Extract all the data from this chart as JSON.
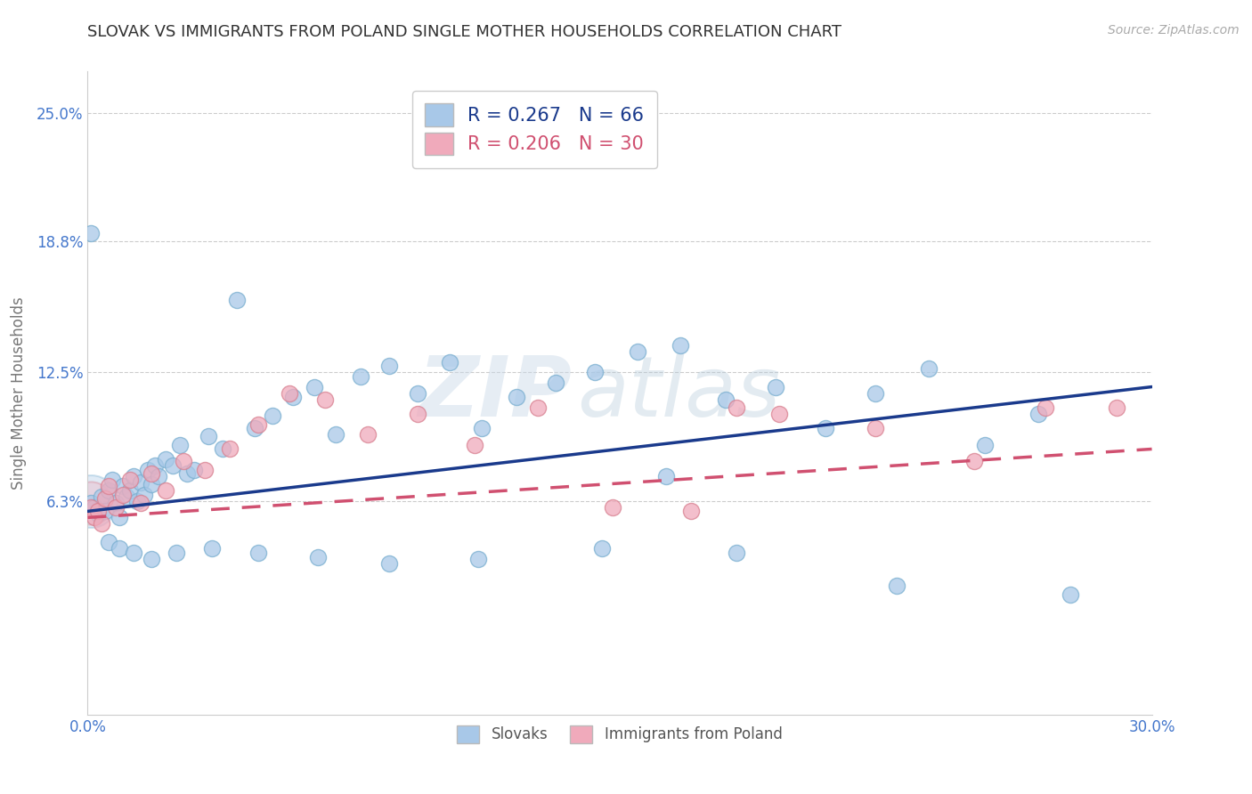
{
  "title": "SLOVAK VS IMMIGRANTS FROM POLAND SINGLE MOTHER HOUSEHOLDS CORRELATION CHART",
  "source": "Source: ZipAtlas.com",
  "ylabel": "Single Mother Households",
  "xmin": 0.0,
  "xmax": 0.3,
  "ymin": -0.04,
  "ymax": 0.27,
  "yticks": [
    0.063,
    0.125,
    0.188,
    0.25
  ],
  "ytick_labels": [
    "6.3%",
    "12.5%",
    "18.8%",
    "25.0%"
  ],
  "xticks": [
    0.0,
    0.05,
    0.1,
    0.15,
    0.2,
    0.25,
    0.3
  ],
  "xtick_labels": [
    "0.0%",
    "",
    "",
    "",
    "",
    "",
    "30.0%"
  ],
  "legend_bottom_labels": [
    "Slovaks",
    "Immigrants from Poland"
  ],
  "R_slovak": 0.267,
  "N_slovak": 66,
  "R_poland": 0.206,
  "N_poland": 30,
  "blue_color": "#a8c8e8",
  "blue_edge_color": "#7aafd0",
  "blue_line_color": "#1a3a8c",
  "pink_color": "#f0aabb",
  "pink_edge_color": "#d88090",
  "pink_line_color": "#d05070",
  "grid_color": "#cccccc",
  "title_color": "#333333",
  "axis_tick_color": "#4477cc",
  "background_color": "#ffffff",
  "blue_line_start_y": 0.058,
  "blue_line_end_y": 0.118,
  "pink_line_start_y": 0.055,
  "pink_line_end_y": 0.088,
  "slovak_x": [
    0.001,
    0.002,
    0.003,
    0.004,
    0.005,
    0.006,
    0.007,
    0.008,
    0.009,
    0.01,
    0.011,
    0.012,
    0.013,
    0.014,
    0.015,
    0.016,
    0.017,
    0.018,
    0.019,
    0.02,
    0.022,
    0.024,
    0.026,
    0.028,
    0.03,
    0.034,
    0.038,
    0.042,
    0.047,
    0.052,
    0.058,
    0.064,
    0.07,
    0.077,
    0.085,
    0.093,
    0.102,
    0.111,
    0.121,
    0.132,
    0.143,
    0.155,
    0.167,
    0.18,
    0.194,
    0.208,
    0.222,
    0.237,
    0.253,
    0.268,
    0.006,
    0.009,
    0.013,
    0.018,
    0.025,
    0.035,
    0.048,
    0.065,
    0.085,
    0.11,
    0.145,
    0.183,
    0.228,
    0.163,
    0.277,
    0.001
  ],
  "slovak_y": [
    0.062,
    0.06,
    0.057,
    0.065,
    0.058,
    0.068,
    0.073,
    0.062,
    0.055,
    0.07,
    0.065,
    0.068,
    0.075,
    0.063,
    0.072,
    0.066,
    0.078,
    0.071,
    0.08,
    0.075,
    0.083,
    0.08,
    0.09,
    0.076,
    0.078,
    0.094,
    0.088,
    0.16,
    0.098,
    0.104,
    0.113,
    0.118,
    0.095,
    0.123,
    0.128,
    0.115,
    0.13,
    0.098,
    0.113,
    0.12,
    0.125,
    0.135,
    0.138,
    0.112,
    0.118,
    0.098,
    0.115,
    0.127,
    0.09,
    0.105,
    0.043,
    0.04,
    0.038,
    0.035,
    0.038,
    0.04,
    0.038,
    0.036,
    0.033,
    0.035,
    0.04,
    0.038,
    0.022,
    0.075,
    0.018,
    0.192
  ],
  "poland_x": [
    0.001,
    0.002,
    0.003,
    0.004,
    0.005,
    0.006,
    0.008,
    0.01,
    0.012,
    0.015,
    0.018,
    0.022,
    0.027,
    0.033,
    0.04,
    0.048,
    0.057,
    0.067,
    0.079,
    0.093,
    0.109,
    0.127,
    0.148,
    0.17,
    0.195,
    0.222,
    0.183,
    0.25,
    0.27,
    0.29
  ],
  "poland_y": [
    0.06,
    0.055,
    0.058,
    0.052,
    0.064,
    0.07,
    0.06,
    0.066,
    0.073,
    0.062,
    0.076,
    0.068,
    0.082,
    0.078,
    0.088,
    0.1,
    0.115,
    0.112,
    0.095,
    0.105,
    0.09,
    0.108,
    0.06,
    0.058,
    0.105,
    0.098,
    0.108,
    0.082,
    0.108,
    0.108
  ],
  "watermark_zip_color": "#c5d5e5",
  "watermark_atlas_color": "#b8ccd8"
}
